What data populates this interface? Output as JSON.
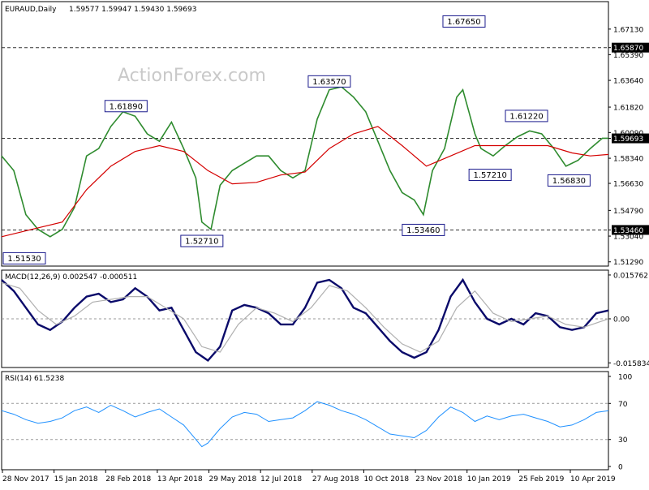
{
  "header": {
    "symbol": "EURAUD,Daily",
    "ohlc": "1.59577 1.59947 1.59430 1.59693"
  },
  "watermark": "ActionForex.com",
  "colors": {
    "price": "#2e8b2e",
    "ma": "#d40000",
    "macd": "#0a0a6a",
    "signal": "#b0b0b0",
    "rsi": "#1e90ff",
    "level": "#333333",
    "grid": "#d0d0d0"
  },
  "chart_data": [
    {
      "type": "line",
      "panel": "price",
      "ylim": [
        1.51,
        1.69
      ],
      "y_ticks": [
        "1.67130",
        "1.65870",
        "1.65390",
        "1.63640",
        "1.61820",
        "1.60090",
        "1.59693",
        "1.58340",
        "1.56630",
        "1.54790",
        "1.53460",
        "1.53040",
        "1.51290"
      ],
      "ma_label": "",
      "horizontal_levels": [
        {
          "label": "1.65870",
          "value": 1.6587
        },
        {
          "label": "1.59693",
          "value": 1.59693
        },
        {
          "label": "1.53460",
          "value": 1.5346
        }
      ],
      "annotations": [
        {
          "label": "1.51530",
          "x": 0.025,
          "value": 1.5153
        },
        {
          "label": "1.61890",
          "x": 0.205,
          "value": 1.6189
        },
        {
          "label": "1.52710",
          "x": 0.33,
          "value": 1.5271
        },
        {
          "label": "1.63570",
          "x": 0.54,
          "value": 1.6357
        },
        {
          "label": "1.53460",
          "x": 0.695,
          "value": 1.5346
        },
        {
          "label": "1.67650",
          "x": 0.762,
          "value": 1.6765
        },
        {
          "label": "1.57210",
          "x": 0.805,
          "value": 1.5721
        },
        {
          "label": "1.61220",
          "x": 0.865,
          "value": 1.6122
        },
        {
          "label": "1.56830",
          "x": 0.935,
          "value": 1.5683
        }
      ],
      "series": [
        {
          "role": "price",
          "points": [
            [
              0.0,
              1.585
            ],
            [
              0.02,
              1.575
            ],
            [
              0.04,
              1.545
            ],
            [
              0.06,
              1.535
            ],
            [
              0.08,
              1.53
            ],
            [
              0.1,
              1.535
            ],
            [
              0.12,
              1.55
            ],
            [
              0.14,
              1.585
            ],
            [
              0.16,
              1.59
            ],
            [
              0.18,
              1.605
            ],
            [
              0.2,
              1.615
            ],
            [
              0.22,
              1.612
            ],
            [
              0.24,
              1.6
            ],
            [
              0.26,
              1.595
            ],
            [
              0.28,
              1.608
            ],
            [
              0.3,
              1.59
            ],
            [
              0.32,
              1.57
            ],
            [
              0.33,
              1.54
            ],
            [
              0.345,
              1.535
            ],
            [
              0.36,
              1.565
            ],
            [
              0.38,
              1.575
            ],
            [
              0.4,
              1.58
            ],
            [
              0.42,
              1.585
            ],
            [
              0.44,
              1.585
            ],
            [
              0.46,
              1.575
            ],
            [
              0.48,
              1.57
            ],
            [
              0.5,
              1.575
            ],
            [
              0.52,
              1.61
            ],
            [
              0.54,
              1.63
            ],
            [
              0.56,
              1.632
            ],
            [
              0.58,
              1.625
            ],
            [
              0.6,
              1.615
            ],
            [
              0.62,
              1.595
            ],
            [
              0.64,
              1.575
            ],
            [
              0.66,
              1.56
            ],
            [
              0.68,
              1.555
            ],
            [
              0.695,
              1.545
            ],
            [
              0.71,
              1.575
            ],
            [
              0.73,
              1.59
            ],
            [
              0.75,
              1.625
            ],
            [
              0.76,
              1.63
            ],
            [
              0.77,
              1.615
            ],
            [
              0.78,
              1.6
            ],
            [
              0.79,
              1.59
            ],
            [
              0.81,
              1.585
            ],
            [
              0.83,
              1.592
            ],
            [
              0.85,
              1.598
            ],
            [
              0.87,
              1.602
            ],
            [
              0.89,
              1.6
            ],
            [
              0.91,
              1.59
            ],
            [
              0.93,
              1.578
            ],
            [
              0.95,
              1.582
            ],
            [
              0.97,
              1.59
            ],
            [
              0.99,
              1.597
            ],
            [
              1.0,
              1.597
            ]
          ]
        },
        {
          "role": "moving-average",
          "points": [
            [
              0.0,
              1.53
            ],
            [
              0.05,
              1.535
            ],
            [
              0.1,
              1.54
            ],
            [
              0.14,
              1.562
            ],
            [
              0.18,
              1.578
            ],
            [
              0.22,
              1.588
            ],
            [
              0.26,
              1.592
            ],
            [
              0.3,
              1.588
            ],
            [
              0.34,
              1.575
            ],
            [
              0.38,
              1.566
            ],
            [
              0.42,
              1.567
            ],
            [
              0.46,
              1.572
            ],
            [
              0.5,
              1.574
            ],
            [
              0.54,
              1.59
            ],
            [
              0.58,
              1.6
            ],
            [
              0.62,
              1.605
            ],
            [
              0.66,
              1.592
            ],
            [
              0.7,
              1.578
            ],
            [
              0.74,
              1.585
            ],
            [
              0.78,
              1.592
            ],
            [
              0.82,
              1.592
            ],
            [
              0.86,
              1.592
            ],
            [
              0.9,
              1.592
            ],
            [
              0.94,
              1.587
            ],
            [
              0.97,
              1.585
            ],
            [
              1.0,
              1.586
            ]
          ]
        }
      ]
    },
    {
      "type": "line",
      "panel": "macd",
      "title": "MACD(12,26,9) 0.002547 -0.000511",
      "ylim": [
        -0.0175,
        0.0175
      ],
      "y_ticks": [
        "0.015762",
        "0.00",
        "-0.015834"
      ],
      "series": [
        {
          "role": "macd",
          "points": [
            [
              0.0,
              0.014
            ],
            [
              0.02,
              0.01
            ],
            [
              0.04,
              0.004
            ],
            [
              0.06,
              -0.002
            ],
            [
              0.08,
              -0.004
            ],
            [
              0.1,
              -0.001
            ],
            [
              0.12,
              0.004
            ],
            [
              0.14,
              0.008
            ],
            [
              0.16,
              0.009
            ],
            [
              0.18,
              0.006
            ],
            [
              0.2,
              0.007
            ],
            [
              0.22,
              0.011
            ],
            [
              0.24,
              0.008
            ],
            [
              0.26,
              0.003
            ],
            [
              0.28,
              0.004
            ],
            [
              0.3,
              -0.004
            ],
            [
              0.32,
              -0.012
            ],
            [
              0.34,
              -0.015
            ],
            [
              0.36,
              -0.01
            ],
            [
              0.38,
              0.003
            ],
            [
              0.4,
              0.005
            ],
            [
              0.42,
              0.004
            ],
            [
              0.44,
              0.002
            ],
            [
              0.46,
              -0.002
            ],
            [
              0.48,
              -0.002
            ],
            [
              0.5,
              0.004
            ],
            [
              0.52,
              0.013
            ],
            [
              0.54,
              0.014
            ],
            [
              0.56,
              0.011
            ],
            [
              0.58,
              0.004
            ],
            [
              0.6,
              0.002
            ],
            [
              0.62,
              -0.003
            ],
            [
              0.64,
              -0.008
            ],
            [
              0.66,
              -0.012
            ],
            [
              0.68,
              -0.014
            ],
            [
              0.7,
              -0.012
            ],
            [
              0.72,
              -0.004
            ],
            [
              0.74,
              0.008
            ],
            [
              0.76,
              0.014
            ],
            [
              0.78,
              0.006
            ],
            [
              0.8,
              0.0
            ],
            [
              0.82,
              -0.002
            ],
            [
              0.84,
              0.0
            ],
            [
              0.86,
              -0.002
            ],
            [
              0.88,
              0.002
            ],
            [
              0.9,
              0.001
            ],
            [
              0.92,
              -0.003
            ],
            [
              0.94,
              -0.004
            ],
            [
              0.96,
              -0.003
            ],
            [
              0.98,
              0.002
            ],
            [
              1.0,
              0.003
            ]
          ]
        },
        {
          "role": "signal",
          "points": [
            [
              0.0,
              0.013
            ],
            [
              0.03,
              0.011
            ],
            [
              0.06,
              0.003
            ],
            [
              0.09,
              -0.002
            ],
            [
              0.12,
              0.001
            ],
            [
              0.15,
              0.006
            ],
            [
              0.18,
              0.007
            ],
            [
              0.21,
              0.008
            ],
            [
              0.24,
              0.008
            ],
            [
              0.27,
              0.004
            ],
            [
              0.3,
              0.0
            ],
            [
              0.33,
              -0.01
            ],
            [
              0.36,
              -0.012
            ],
            [
              0.39,
              -0.002
            ],
            [
              0.42,
              0.004
            ],
            [
              0.45,
              0.002
            ],
            [
              0.48,
              -0.001
            ],
            [
              0.51,
              0.004
            ],
            [
              0.54,
              0.012
            ],
            [
              0.57,
              0.01
            ],
            [
              0.6,
              0.004
            ],
            [
              0.63,
              -0.003
            ],
            [
              0.66,
              -0.009
            ],
            [
              0.69,
              -0.012
            ],
            [
              0.72,
              -0.008
            ],
            [
              0.75,
              0.004
            ],
            [
              0.78,
              0.01
            ],
            [
              0.81,
              0.002
            ],
            [
              0.84,
              -0.001
            ],
            [
              0.87,
              0.0
            ],
            [
              0.9,
              0.001
            ],
            [
              0.93,
              -0.002
            ],
            [
              0.96,
              -0.003
            ],
            [
              1.0,
              0.0
            ]
          ]
        }
      ]
    },
    {
      "type": "line",
      "panel": "rsi",
      "title": "RSI(14) 61.5238",
      "ylim": [
        0,
        100
      ],
      "y_ticks": [
        "100",
        "70",
        "30",
        "0"
      ],
      "levels": [
        70,
        30
      ],
      "series": [
        {
          "role": "rsi",
          "points": [
            [
              0.0,
              62
            ],
            [
              0.02,
              58
            ],
            [
              0.04,
              52
            ],
            [
              0.06,
              48
            ],
            [
              0.08,
              50
            ],
            [
              0.1,
              54
            ],
            [
              0.12,
              62
            ],
            [
              0.14,
              66
            ],
            [
              0.16,
              60
            ],
            [
              0.18,
              68
            ],
            [
              0.2,
              62
            ],
            [
              0.22,
              55
            ],
            [
              0.24,
              60
            ],
            [
              0.26,
              64
            ],
            [
              0.28,
              55
            ],
            [
              0.3,
              46
            ],
            [
              0.32,
              30
            ],
            [
              0.33,
              22
            ],
            [
              0.34,
              26
            ],
            [
              0.36,
              42
            ],
            [
              0.38,
              55
            ],
            [
              0.4,
              60
            ],
            [
              0.42,
              58
            ],
            [
              0.44,
              50
            ],
            [
              0.46,
              52
            ],
            [
              0.48,
              54
            ],
            [
              0.5,
              62
            ],
            [
              0.52,
              72
            ],
            [
              0.54,
              68
            ],
            [
              0.56,
              62
            ],
            [
              0.58,
              58
            ],
            [
              0.6,
              52
            ],
            [
              0.62,
              44
            ],
            [
              0.64,
              36
            ],
            [
              0.66,
              34
            ],
            [
              0.68,
              32
            ],
            [
              0.7,
              40
            ],
            [
              0.72,
              55
            ],
            [
              0.74,
              66
            ],
            [
              0.76,
              60
            ],
            [
              0.78,
              50
            ],
            [
              0.8,
              56
            ],
            [
              0.82,
              52
            ],
            [
              0.84,
              56
            ],
            [
              0.86,
              58
            ],
            [
              0.88,
              54
            ],
            [
              0.9,
              50
            ],
            [
              0.92,
              44
            ],
            [
              0.94,
              46
            ],
            [
              0.96,
              52
            ],
            [
              0.98,
              60
            ],
            [
              1.0,
              62
            ]
          ]
        }
      ]
    }
  ],
  "x_ticks": [
    "28 Nov 2017",
    "15 Jan 2018",
    "28 Feb 2018",
    "13 Apr 2018",
    "29 May 2018",
    "12 Jul 2018",
    "27 Aug 2018",
    "10 Oct 2018",
    "23 Nov 2018",
    "10 Jan 2019",
    "25 Feb 2019",
    "10 Apr 2019"
  ]
}
